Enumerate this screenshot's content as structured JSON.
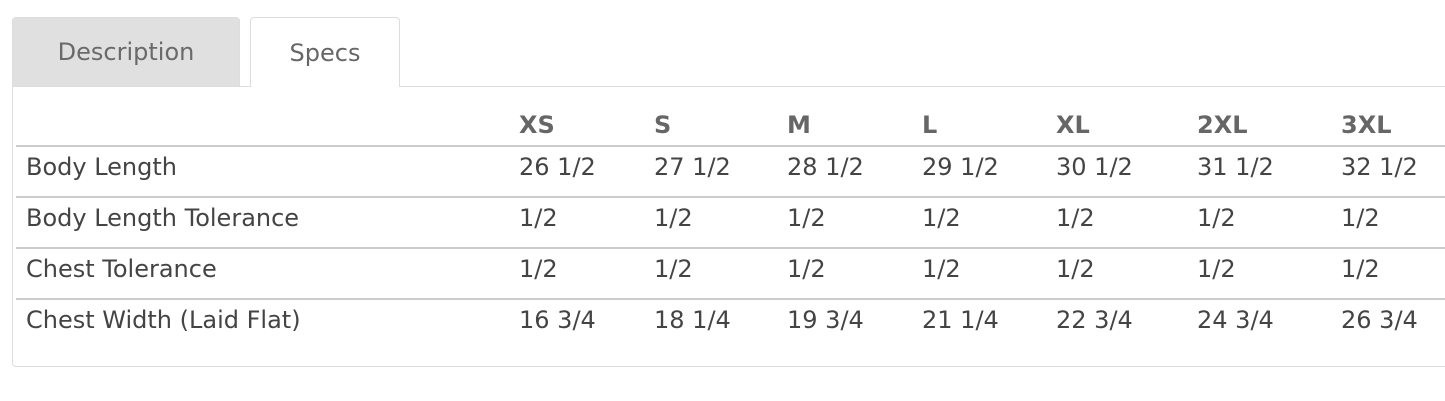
{
  "tabs": [
    {
      "label": "Description",
      "active": false
    },
    {
      "label": "Specs",
      "active": true
    }
  ],
  "table": {
    "headers": [
      "",
      "XS",
      "S",
      "M",
      "L",
      "XL",
      "2XL",
      "3XL"
    ],
    "rows": [
      {
        "label": "Body Length",
        "values": [
          "26 1/2",
          "27 1/2",
          "28 1/2",
          "29 1/2",
          "30 1/2",
          "31 1/2",
          "32 1/2"
        ]
      },
      {
        "label": "Body Length Tolerance",
        "values": [
          "1/2",
          "1/2",
          "1/2",
          "1/2",
          "1/2",
          "1/2",
          "1/2"
        ]
      },
      {
        "label": "Chest Tolerance",
        "values": [
          "1/2",
          "1/2",
          "1/2",
          "1/2",
          "1/2",
          "1/2",
          "1/2"
        ]
      },
      {
        "label": "Chest Width (Laid Flat)",
        "values": [
          "16 3/4",
          "18 1/4",
          "19 3/4",
          "21 1/4",
          "22 3/4",
          "24 3/4",
          "26 3/4"
        ]
      }
    ]
  }
}
